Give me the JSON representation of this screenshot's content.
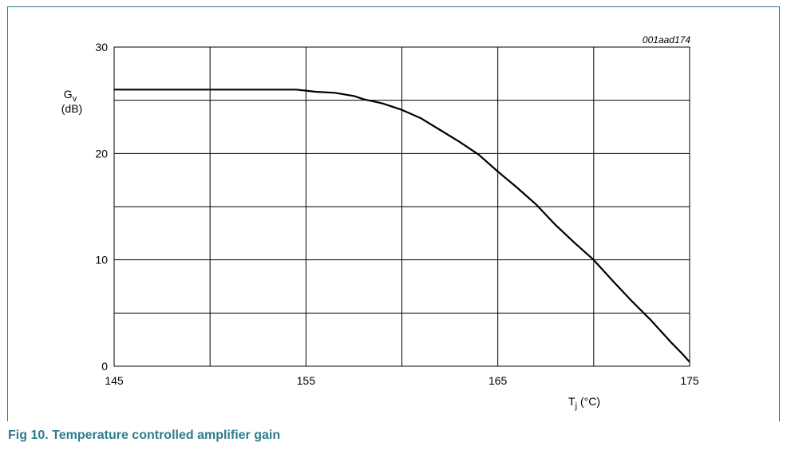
{
  "caption": "Fig 10.  Temperature controlled amplifier gain",
  "figure_code": "001aad174",
  "colors": {
    "frame": "#2c7c8e",
    "caption": "#2c7c8e",
    "grid": "#000000",
    "curve": "#000000"
  },
  "chart_data": {
    "type": "line",
    "title": "",
    "xlabel": {
      "symbol": "T",
      "subscript": "j",
      "unit": "(°C)"
    },
    "ylabel": {
      "symbol": "G",
      "subscript": "v",
      "unit": "(dB)"
    },
    "xlim": [
      145,
      175
    ],
    "ylim": [
      0,
      30
    ],
    "x_ticks": [
      145,
      150,
      155,
      160,
      165,
      170,
      175
    ],
    "x_tick_labels": [
      "145",
      "",
      "155",
      "",
      "165",
      "",
      "175"
    ],
    "y_ticks": [
      0,
      5,
      10,
      15,
      20,
      25,
      30
    ],
    "y_tick_labels": [
      "0",
      "",
      "10",
      "",
      "20",
      "",
      "30"
    ],
    "grid": true,
    "series": [
      {
        "x": [
          145,
          150,
          154.5,
          155.5,
          156.5,
          157.5,
          158,
          159,
          160,
          161,
          162,
          163,
          164,
          165,
          166,
          167,
          168,
          169,
          170,
          171,
          172,
          173,
          174,
          174.6,
          175
        ],
        "y": [
          26,
          26,
          26,
          25.8,
          25.7,
          25.4,
          25.1,
          24.7,
          24.1,
          23.3,
          22.2,
          21.1,
          19.9,
          18.3,
          16.8,
          15.2,
          13.3,
          11.6,
          10.0,
          8.0,
          6.1,
          4.3,
          2.3,
          1.2,
          0.4
        ]
      }
    ]
  }
}
